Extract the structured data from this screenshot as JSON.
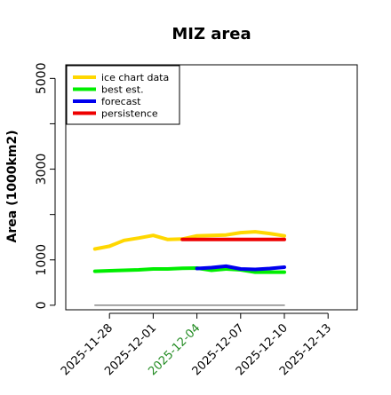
{
  "chart_data": {
    "type": "line",
    "title": "MIZ area",
    "ylabel": "Area (1000km2)",
    "xlabel": "",
    "ylim": [
      -100,
      5300
    ],
    "yticks": [
      0,
      1000,
      3000,
      5000
    ],
    "yticks_minor": [
      2000,
      4000
    ],
    "xlim": [
      "2025-11-25",
      "2025-12-15"
    ],
    "x_ticks": [
      {
        "date": "2025-11-28",
        "label": "2025-11-28",
        "color": "#000000"
      },
      {
        "date": "2025-12-01",
        "label": "2025-12-01",
        "color": "#000000"
      },
      {
        "date": "2025-12-04",
        "label": "2025-12-04",
        "color": "#228b22"
      },
      {
        "date": "2025-12-07",
        "label": "2025-12-07",
        "color": "#000000"
      },
      {
        "date": "2025-12-10",
        "label": "2025-12-10",
        "color": "#000000"
      },
      {
        "date": "2025-12-13",
        "label": "2025-12-13",
        "color": "#000000"
      }
    ],
    "legend": {
      "placement": "top-left",
      "entries": [
        "ice chart data",
        "best est.",
        "forecast",
        "persistence"
      ]
    },
    "series": [
      {
        "name": "ice chart data",
        "color": "#ffd700",
        "x": [
          "2025-11-27",
          "2025-11-28",
          "2025-11-29",
          "2025-11-30",
          "2025-12-01",
          "2025-12-02",
          "2025-12-03",
          "2025-12-04",
          "2025-12-05",
          "2025-12-06",
          "2025-12-07",
          "2025-12-08",
          "2025-12-09",
          "2025-12-10"
        ],
        "values": [
          1240,
          1300,
          1430,
          1480,
          1540,
          1450,
          1460,
          1530,
          1540,
          1550,
          1600,
          1620,
          1580,
          1530
        ]
      },
      {
        "name": "best est.",
        "color": "#00ee00",
        "x": [
          "2025-11-27",
          "2025-11-28",
          "2025-11-29",
          "2025-11-30",
          "2025-12-01",
          "2025-12-02",
          "2025-12-03",
          "2025-12-04",
          "2025-12-05",
          "2025-12-06",
          "2025-12-07",
          "2025-12-08",
          "2025-12-09",
          "2025-12-10"
        ],
        "values": [
          750,
          760,
          770,
          780,
          800,
          800,
          815,
          820,
          770,
          800,
          780,
          730,
          730,
          730
        ]
      },
      {
        "name": "forecast",
        "color": "#0000ee",
        "x": [
          "2025-12-04",
          "2025-12-05",
          "2025-12-06",
          "2025-12-07",
          "2025-12-08",
          "2025-12-09",
          "2025-12-10"
        ],
        "values": [
          810,
          830,
          860,
          800,
          790,
          810,
          840
        ]
      },
      {
        "name": "persistence",
        "color": "#ee0000",
        "x": [
          "2025-12-03",
          "2025-12-10"
        ],
        "values": [
          1450,
          1450
        ]
      },
      {
        "name": "",
        "color": "#888888",
        "x": [
          "2025-11-27",
          "2025-12-10"
        ],
        "values": [
          0,
          0
        ]
      }
    ]
  }
}
